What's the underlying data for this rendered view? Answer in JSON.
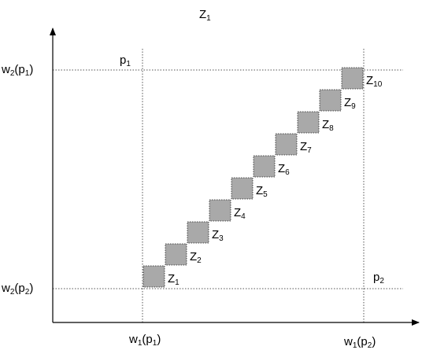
{
  "title": {
    "base": "Z",
    "sub": "1"
  },
  "y_axis_labels": {
    "upper": {
      "base": "w",
      "sub": "2",
      "arg_open": "(p",
      "arg_sub": "1",
      "arg_close": ")"
    },
    "lower": {
      "base": "w",
      "sub": "2",
      "arg_open": "(p",
      "arg_sub": "2",
      "arg_close": ")"
    }
  },
  "x_axis_labels": {
    "left": {
      "base": "w",
      "sub": "1",
      "arg_open": "(p",
      "arg_sub": "1",
      "arg_close": ")"
    },
    "right": {
      "base": "w",
      "sub": "1",
      "arg_open": "(p",
      "arg_sub": "2",
      "arg_close": ")"
    }
  },
  "point_labels": {
    "p1": {
      "base": "p",
      "sub": "1"
    },
    "p2": {
      "base": "p",
      "sub": "2"
    }
  },
  "squares": [
    {
      "base": "Z",
      "sub": "1"
    },
    {
      "base": "Z",
      "sub": "2"
    },
    {
      "base": "Z",
      "sub": "3"
    },
    {
      "base": "Z",
      "sub": "4"
    },
    {
      "base": "Z",
      "sub": "5"
    },
    {
      "base": "Z",
      "sub": "6"
    },
    {
      "base": "Z",
      "sub": "7"
    },
    {
      "base": "Z",
      "sub": "8"
    },
    {
      "base": "Z",
      "sub": "9"
    },
    {
      "base": "Z",
      "sub": "10"
    }
  ],
  "colors": {
    "square_fill": "#a9a9a9",
    "guide_line": "#555555",
    "axis": "#000000"
  }
}
